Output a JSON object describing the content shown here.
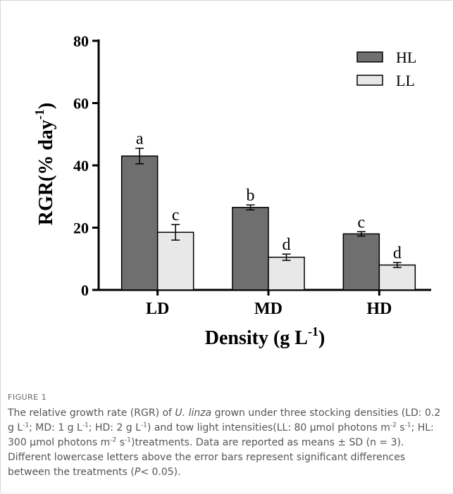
{
  "chart_data": {
    "type": "bar",
    "categories": [
      "LD",
      "MD",
      "HD"
    ],
    "series": [
      {
        "name": "HL",
        "color": "#6f6f6f",
        "values": [
          43,
          26.5,
          18
        ],
        "errors": [
          2.5,
          0.8,
          0.7
        ],
        "letters": [
          "a",
          "b",
          "c"
        ]
      },
      {
        "name": "LL",
        "color": "#e8e8e8",
        "values": [
          18.5,
          10.5,
          8
        ],
        "errors": [
          2.5,
          1.0,
          0.8
        ],
        "letters": [
          "c",
          "d",
          "d"
        ]
      }
    ],
    "ylim": [
      0,
      80
    ],
    "yticks": [
      "0",
      "20",
      "40",
      "60",
      "80"
    ],
    "ylabel": "RGR(% day",
    "ylabel_sup": "-1",
    "ylabel_tail": ")",
    "xlabel": "Density (g L",
    "xlabel_sup": "-1",
    "xlabel_tail": ")",
    "legend_position": "top-right"
  },
  "caption": {
    "label": "FIGURE 1",
    "text_html": "The relative growth rate (RGR) of <i>U. linza</i> grown under three stocking densities (LD: 0.2 g L<sup>-1</sup>; MD: 1 g L<sup>-1</sup>; HD: 2 g L<sup>-1</sup>) and tow light intensities(LL: 80 µmol photons m<sup>-2</sup> s<sup>-1</sup>; HL: 300 µmol photons m<sup>-2</sup> s<sup>-1</sup>)treatments. Data are reported as means ± SD (n = 3). Different lowercase letters above the error bars represent significant differences between the treatments (<i>P</i>&lt; 0.05)."
  }
}
